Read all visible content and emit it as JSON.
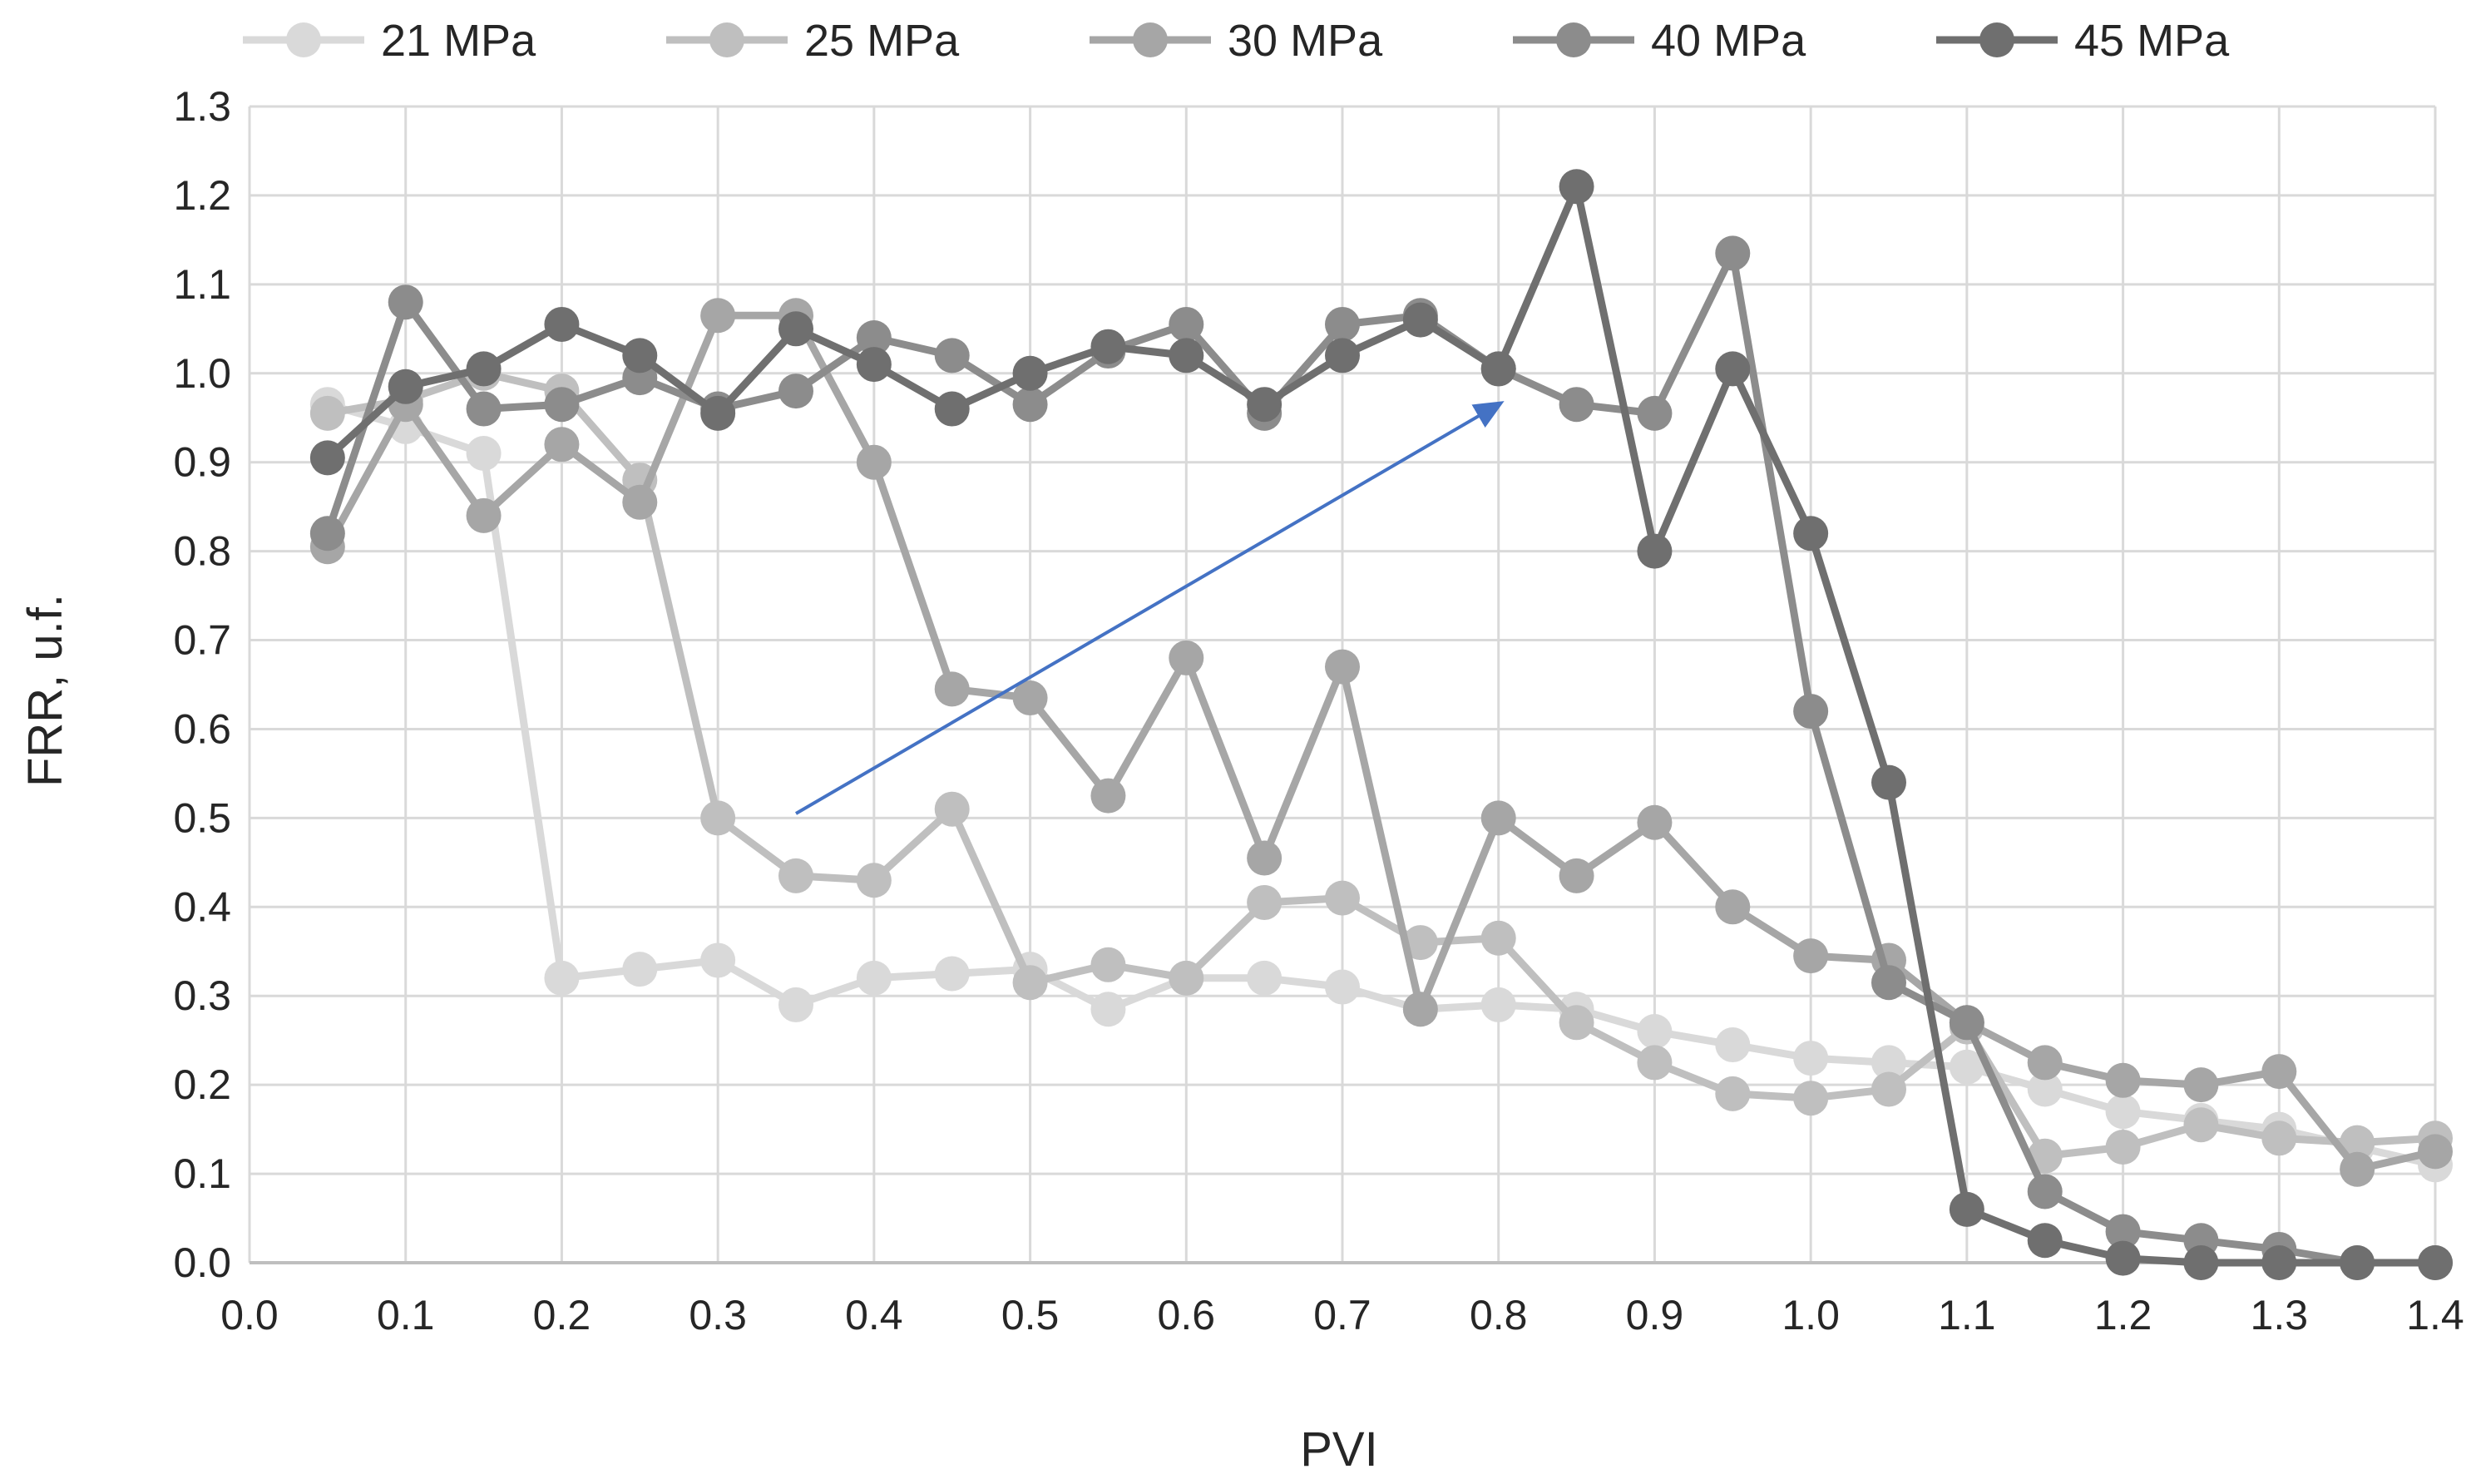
{
  "chart_data": {
    "type": "line",
    "title": "",
    "xlabel": "PVI",
    "ylabel": "FRR, u.f.",
    "xlim": [
      0.0,
      1.4
    ],
    "ylim": [
      0.0,
      1.3
    ],
    "xticks": [
      "0.0",
      "0.1",
      "0.2",
      "0.3",
      "0.4",
      "0.5",
      "0.6",
      "0.7",
      "0.8",
      "0.9",
      "1.0",
      "1.1",
      "1.2",
      "1.3",
      "1.4"
    ],
    "yticks": [
      "0.0",
      "0.1",
      "0.2",
      "0.3",
      "0.4",
      "0.5",
      "0.6",
      "0.7",
      "0.8",
      "0.9",
      "1.0",
      "1.1",
      "1.2",
      "1.3"
    ],
    "grid": true,
    "legend_position": "top",
    "x": [
      0.05,
      0.1,
      0.15,
      0.2,
      0.25,
      0.3,
      0.35,
      0.4,
      0.45,
      0.5,
      0.55,
      0.6,
      0.65,
      0.7,
      0.75,
      0.8,
      0.85,
      0.9,
      0.95,
      1.0,
      1.05,
      1.1,
      1.15,
      1.2,
      1.25,
      1.3,
      1.35,
      1.4
    ],
    "series": [
      {
        "name": "21 MPa",
        "color": "#d9d9d9",
        "values": [
          0.965,
          0.94,
          0.91,
          0.32,
          0.33,
          0.34,
          0.29,
          0.32,
          0.325,
          0.33,
          0.285,
          0.32,
          0.32,
          0.31,
          0.285,
          0.29,
          0.285,
          0.26,
          0.245,
          0.23,
          0.225,
          0.22,
          0.195,
          0.17,
          0.16,
          0.15,
          0.13,
          0.11
        ]
      },
      {
        "name": "25 MPa",
        "color": "#bfbfbf",
        "values": [
          0.955,
          0.97,
          1.0,
          0.98,
          0.88,
          0.5,
          0.435,
          0.43,
          0.51,
          0.315,
          0.335,
          0.32,
          0.405,
          0.41,
          0.36,
          0.365,
          0.27,
          0.225,
          0.19,
          0.185,
          0.195,
          0.265,
          0.12,
          0.13,
          0.155,
          0.14,
          0.135,
          0.14
        ]
      },
      {
        "name": "30 MPa",
        "color": "#a6a6a6",
        "values": [
          0.805,
          0.965,
          0.84,
          0.92,
          0.855,
          1.065,
          1.065,
          0.9,
          0.645,
          0.635,
          0.525,
          0.68,
          0.455,
          0.67,
          0.285,
          0.5,
          0.435,
          0.495,
          0.4,
          0.345,
          0.34,
          0.27,
          0.225,
          0.205,
          0.2,
          0.215,
          0.105,
          0.125
        ]
      },
      {
        "name": "40 MPa",
        "color": "#8c8c8c",
        "values": [
          0.82,
          1.08,
          0.96,
          0.965,
          0.995,
          0.96,
          0.98,
          1.04,
          1.02,
          0.965,
          1.025,
          1.055,
          0.955,
          1.055,
          1.065,
          1.005,
          0.965,
          0.955,
          1.135,
          0.62,
          0.315,
          0.27,
          0.08,
          0.035,
          0.025,
          0.015,
          0.0,
          0.0
        ]
      },
      {
        "name": "45 MPa",
        "color": "#6f6f6f",
        "values": [
          0.905,
          0.985,
          1.005,
          1.055,
          1.02,
          0.955,
          1.05,
          1.01,
          0.96,
          1.0,
          1.03,
          1.02,
          0.965,
          1.02,
          1.06,
          1.005,
          1.21,
          0.8,
          1.005,
          0.82,
          0.54,
          0.06,
          0.025,
          0.005,
          0.0,
          0.0,
          0.0,
          0.0
        ]
      }
    ],
    "annotations": [
      {
        "type": "arrow",
        "color": "#4472c4",
        "from": {
          "x": 0.35,
          "y": 0.505
        },
        "to": {
          "x": 0.8,
          "y": 0.965
        }
      }
    ]
  }
}
